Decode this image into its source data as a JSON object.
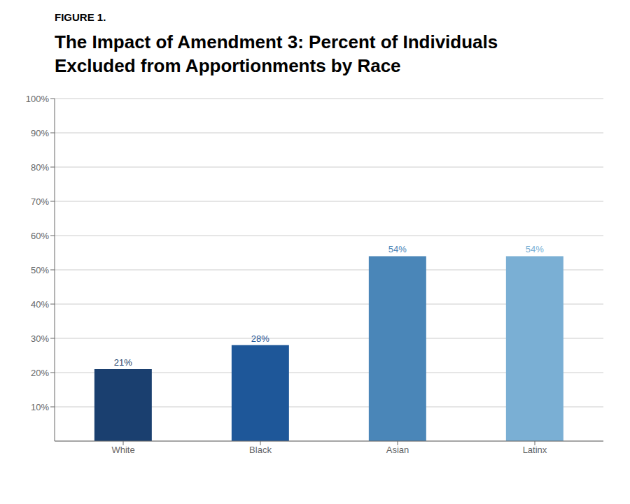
{
  "chart_data": {
    "type": "bar",
    "title": "The Impact of Amendment 3: Percent of Individuals\nExcluded from Apportionments by Race",
    "annotations": [
      "FIGURE 1."
    ],
    "categories": [
      "White",
      "Black",
      "Asian",
      "Latinx"
    ],
    "values": [
      21,
      28,
      54,
      54
    ],
    "value_labels": [
      "21%",
      "28%",
      "54%",
      "54%"
    ],
    "data_labels": true,
    "colors": [
      "#1a3f6f",
      "#1e5799",
      "#4a86b8",
      "#7aafd4"
    ],
    "ylim": [
      0,
      100
    ],
    "yticks": [
      {
        "value": 10,
        "label": "10%"
      },
      {
        "value": 20,
        "label": "20%"
      },
      {
        "value": 30,
        "label": "30%"
      },
      {
        "value": 40,
        "label": "40%"
      },
      {
        "value": 50,
        "label": "50%"
      },
      {
        "value": 60,
        "label": "60%"
      },
      {
        "value": 70,
        "label": "70%"
      },
      {
        "value": 80,
        "label": "80%"
      },
      {
        "value": 90,
        "label": "90%"
      },
      {
        "value": 100,
        "label": "100%"
      }
    ],
    "grid": true
  }
}
